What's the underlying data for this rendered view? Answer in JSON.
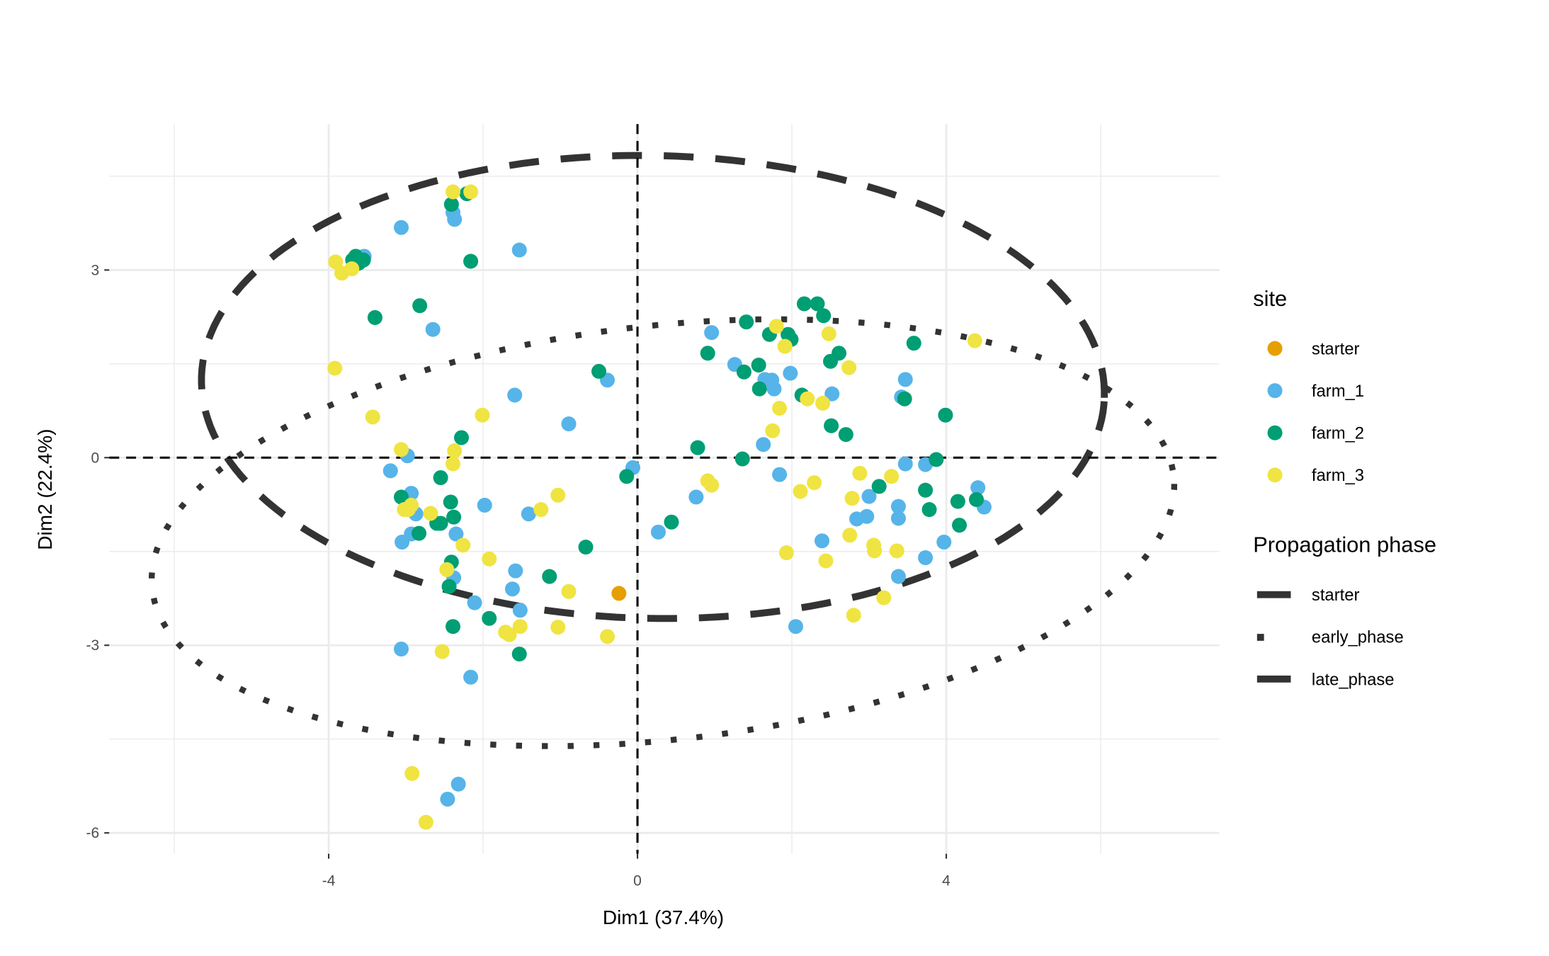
{
  "chart_data": {
    "type": "scatter",
    "xlabel": "Dim1 (37.4%)",
    "ylabel": "Dim2 (22.4%)",
    "xlim": [
      -7.05,
      7.35
    ],
    "ylim": [
      -6.3,
      5.35
    ],
    "x_ticks": [
      -4,
      0,
      4
    ],
    "x_tick_labels": [
      "-4",
      "0",
      "4"
    ],
    "y_ticks": [
      -6,
      -3,
      0,
      3
    ],
    "y_tick_labels": [
      "-6",
      "-3",
      "0",
      "3"
    ],
    "grid": true,
    "reference_lines": {
      "x": 0,
      "y": 0
    },
    "legend_position": "right",
    "color_legend": {
      "title": "site",
      "entries": [
        {
          "label": "starter",
          "color": "#E69F00"
        },
        {
          "label": "farm_1",
          "color": "#56B4E9"
        },
        {
          "label": "farm_2",
          "color": "#009E73"
        },
        {
          "label": "farm_3",
          "color": "#F0E442"
        }
      ]
    },
    "linetype_legend": {
      "title": "Propagation phase",
      "entries": [
        {
          "label": "starter",
          "linetype": "dashed"
        },
        {
          "label": "early_phase",
          "linetype": "dotted"
        },
        {
          "label": "late_phase",
          "linetype": "dashed"
        }
      ]
    },
    "ellipses": [
      {
        "group": "early_phase",
        "linetype": "dotted",
        "center": [
          0.33,
          -1.2
        ],
        "semi_axes": [
          6.68,
          3.3
        ],
        "angle_deg": 8.6
      },
      {
        "group": "late_phase",
        "linetype": "dashed",
        "center": [
          0.2,
          1.13
        ],
        "semi_axes": [
          5.85,
          3.7
        ],
        "angle_deg": -1.7
      }
    ],
    "series": [
      {
        "name": "starter",
        "points": [
          [
            -0.24,
            -2.17
          ]
        ]
      },
      {
        "name": "farm_1",
        "points": [
          [
            -3.06,
            3.68
          ],
          [
            -2.39,
            3.92
          ],
          [
            -2.37,
            3.81
          ],
          [
            -1.53,
            3.32
          ],
          [
            -3.54,
            3.22
          ],
          [
            -2.65,
            2.05
          ],
          [
            -1.59,
            1.0
          ],
          [
            -0.39,
            1.24
          ],
          [
            -0.89,
            0.54
          ],
          [
            -0.06,
            -0.16
          ],
          [
            -3.2,
            -0.21
          ],
          [
            -2.98,
            0.03
          ],
          [
            -2.93,
            -0.57
          ],
          [
            -2.87,
            -0.9
          ],
          [
            -3.05,
            -1.35
          ],
          [
            -2.93,
            -1.22
          ],
          [
            -1.98,
            -0.76
          ],
          [
            -1.41,
            -0.9
          ],
          [
            -2.35,
            -1.22
          ],
          [
            -2.38,
            -1.92
          ],
          [
            -1.58,
            -1.81
          ],
          [
            -1.62,
            -2.1
          ],
          [
            -2.11,
            -2.32
          ],
          [
            -1.52,
            -2.44
          ],
          [
            -3.06,
            -3.06
          ],
          [
            -2.16,
            -3.51
          ],
          [
            -2.32,
            -5.22
          ],
          [
            -2.46,
            -5.46
          ],
          [
            0.27,
            -1.19
          ],
          [
            0.76,
            -0.63
          ],
          [
            0.96,
            2.0
          ],
          [
            1.26,
            1.49
          ],
          [
            1.65,
            1.25
          ],
          [
            1.74,
            1.24
          ],
          [
            1.77,
            1.1
          ],
          [
            1.98,
            1.35
          ],
          [
            2.52,
            1.02
          ],
          [
            1.63,
            0.21
          ],
          [
            1.84,
            -0.27
          ],
          [
            2.05,
            -2.7
          ],
          [
            2.39,
            -1.33
          ],
          [
            2.84,
            -0.98
          ],
          [
            2.97,
            -0.94
          ],
          [
            3.0,
            -0.62
          ],
          [
            3.38,
            -0.78
          ],
          [
            3.38,
            -0.97
          ],
          [
            3.47,
            1.25
          ],
          [
            3.42,
            0.97
          ],
          [
            3.47,
            -0.1
          ],
          [
            3.73,
            -0.11
          ],
          [
            3.73,
            -1.6
          ],
          [
            3.38,
            -1.9
          ],
          [
            3.97,
            -1.35
          ],
          [
            4.41,
            -0.48
          ],
          [
            4.49,
            -0.79
          ]
        ]
      },
      {
        "name": "farm_2",
        "points": [
          [
            -2.41,
            4.05
          ],
          [
            -2.21,
            4.22
          ],
          [
            -2.16,
            3.14
          ],
          [
            -3.65,
            3.22
          ],
          [
            -3.69,
            3.16
          ],
          [
            -3.61,
            3.11
          ],
          [
            -3.55,
            3.16
          ],
          [
            -3.4,
            2.24
          ],
          [
            -2.82,
            2.43
          ],
          [
            -2.28,
            0.32
          ],
          [
            -0.5,
            1.38
          ],
          [
            -0.14,
            -0.3
          ],
          [
            -3.06,
            -0.63
          ],
          [
            -2.83,
            -1.21
          ],
          [
            -2.55,
            -0.32
          ],
          [
            -2.6,
            -1.05
          ],
          [
            -2.55,
            -1.05
          ],
          [
            -2.42,
            -0.71
          ],
          [
            -2.38,
            -0.95
          ],
          [
            -2.41,
            -1.67
          ],
          [
            -2.44,
            -2.06
          ],
          [
            -2.39,
            -2.7
          ],
          [
            -1.92,
            -2.57
          ],
          [
            -1.53,
            -3.14
          ],
          [
            -1.14,
            -1.9
          ],
          [
            -0.67,
            -1.43
          ],
          [
            0.44,
            -1.03
          ],
          [
            0.78,
            0.16
          ],
          [
            0.91,
            1.67
          ],
          [
            1.36,
            -0.02
          ],
          [
            1.41,
            2.17
          ],
          [
            1.38,
            1.37
          ],
          [
            1.57,
            1.48
          ],
          [
            1.71,
            1.97
          ],
          [
            1.58,
            1.1
          ],
          [
            1.95,
            1.97
          ],
          [
            1.99,
            1.89
          ],
          [
            2.16,
            2.46
          ],
          [
            2.33,
            2.46
          ],
          [
            2.41,
            2.27
          ],
          [
            2.5,
            1.54
          ],
          [
            2.61,
            1.67
          ],
          [
            2.51,
            0.51
          ],
          [
            2.7,
            0.37
          ],
          [
            2.13,
            1.0
          ],
          [
            3.13,
            -0.46
          ],
          [
            3.46,
            0.94
          ],
          [
            3.58,
            1.83
          ],
          [
            3.99,
            0.68
          ],
          [
            3.87,
            -0.03
          ],
          [
            3.73,
            -0.52
          ],
          [
            3.78,
            -0.83
          ],
          [
            4.15,
            -0.7
          ],
          [
            4.39,
            -0.67
          ],
          [
            4.17,
            -1.08
          ]
        ]
      },
      {
        "name": "farm_3",
        "points": [
          [
            -2.39,
            4.25
          ],
          [
            -2.16,
            4.25
          ],
          [
            -3.91,
            3.13
          ],
          [
            -3.83,
            2.95
          ],
          [
            -3.7,
            3.02
          ],
          [
            -3.92,
            1.43
          ],
          [
            -3.43,
            0.65
          ],
          [
            -3.06,
            0.13
          ],
          [
            -2.37,
            0.11
          ],
          [
            -2.39,
            -0.1
          ],
          [
            -2.01,
            0.68
          ],
          [
            -3.02,
            -0.83
          ],
          [
            -2.93,
            -0.76
          ],
          [
            -2.97,
            -0.83
          ],
          [
            -2.68,
            -0.89
          ],
          [
            -2.26,
            -1.4
          ],
          [
            -2.47,
            -1.79
          ],
          [
            -1.92,
            -1.62
          ],
          [
            -1.25,
            -0.83
          ],
          [
            -1.03,
            -0.6
          ],
          [
            -0.89,
            -2.14
          ],
          [
            -1.71,
            -2.79
          ],
          [
            -1.66,
            -2.83
          ],
          [
            -1.52,
            -2.7
          ],
          [
            -1.03,
            -2.71
          ],
          [
            -0.39,
            -2.86
          ],
          [
            -2.53,
            -3.1
          ],
          [
            -2.92,
            -5.05
          ],
          [
            -2.74,
            -5.83
          ],
          [
            0.91,
            -0.37
          ],
          [
            0.96,
            -0.44
          ],
          [
            1.8,
            2.1
          ],
          [
            1.91,
            1.78
          ],
          [
            2.48,
            1.98
          ],
          [
            2.74,
            1.44
          ],
          [
            1.84,
            0.79
          ],
          [
            1.75,
            0.43
          ],
          [
            2.2,
            0.94
          ],
          [
            2.4,
            0.87
          ],
          [
            2.11,
            -0.54
          ],
          [
            2.29,
            -0.4
          ],
          [
            2.88,
            -0.25
          ],
          [
            2.78,
            -0.65
          ],
          [
            2.75,
            -1.24
          ],
          [
            3.06,
            -1.4
          ],
          [
            3.07,
            -1.49
          ],
          [
            3.29,
            -0.3
          ],
          [
            3.36,
            -1.49
          ],
          [
            1.93,
            -1.52
          ],
          [
            2.44,
            -1.65
          ],
          [
            2.8,
            -2.52
          ],
          [
            3.19,
            -2.24
          ],
          [
            4.37,
            1.87
          ]
        ]
      }
    ]
  }
}
